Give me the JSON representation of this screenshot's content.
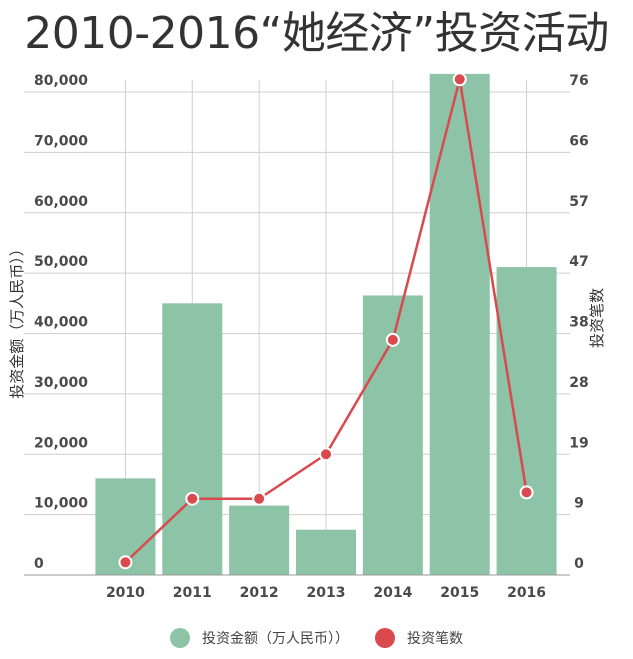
{
  "chart_data": {
    "type": "bar",
    "title": "2010-2016“她经济”投资活动",
    "categories": [
      "2010",
      "2011",
      "2012",
      "2013",
      "2014",
      "2015",
      "2016"
    ],
    "series": [
      {
        "name": "投资金额（万人民币））",
        "type": "bar",
        "axis": "left",
        "color": "#8dc3a7",
        "values": [
          16000,
          45000,
          11500,
          7500,
          46300,
          83000,
          51000
        ]
      },
      {
        "name": "投资笔数",
        "type": "line",
        "axis": "right",
        "color": "#d9494e",
        "values": [
          2,
          12,
          12,
          19,
          37,
          78,
          13
        ]
      }
    ],
    "ylabel_left": "投资金额（万人民币））",
    "ylabel_right": "投资笔数",
    "ylim_left": [
      0,
      80000
    ],
    "ylim_right": [
      0,
      76
    ],
    "yticks_left": [
      0,
      10000,
      20000,
      30000,
      40000,
      50000,
      60000,
      70000,
      80000
    ],
    "yticks_left_labels": [
      "0",
      "10,000",
      "20,000",
      "30,000",
      "40,000",
      "50,000",
      "60,000",
      "70,000",
      "80,000"
    ],
    "yticks_right_labels": [
      "0",
      "9",
      "19",
      "28",
      "38",
      "47",
      "57",
      "66",
      "76"
    ],
    "grid": true,
    "legend_position": "bottom"
  }
}
